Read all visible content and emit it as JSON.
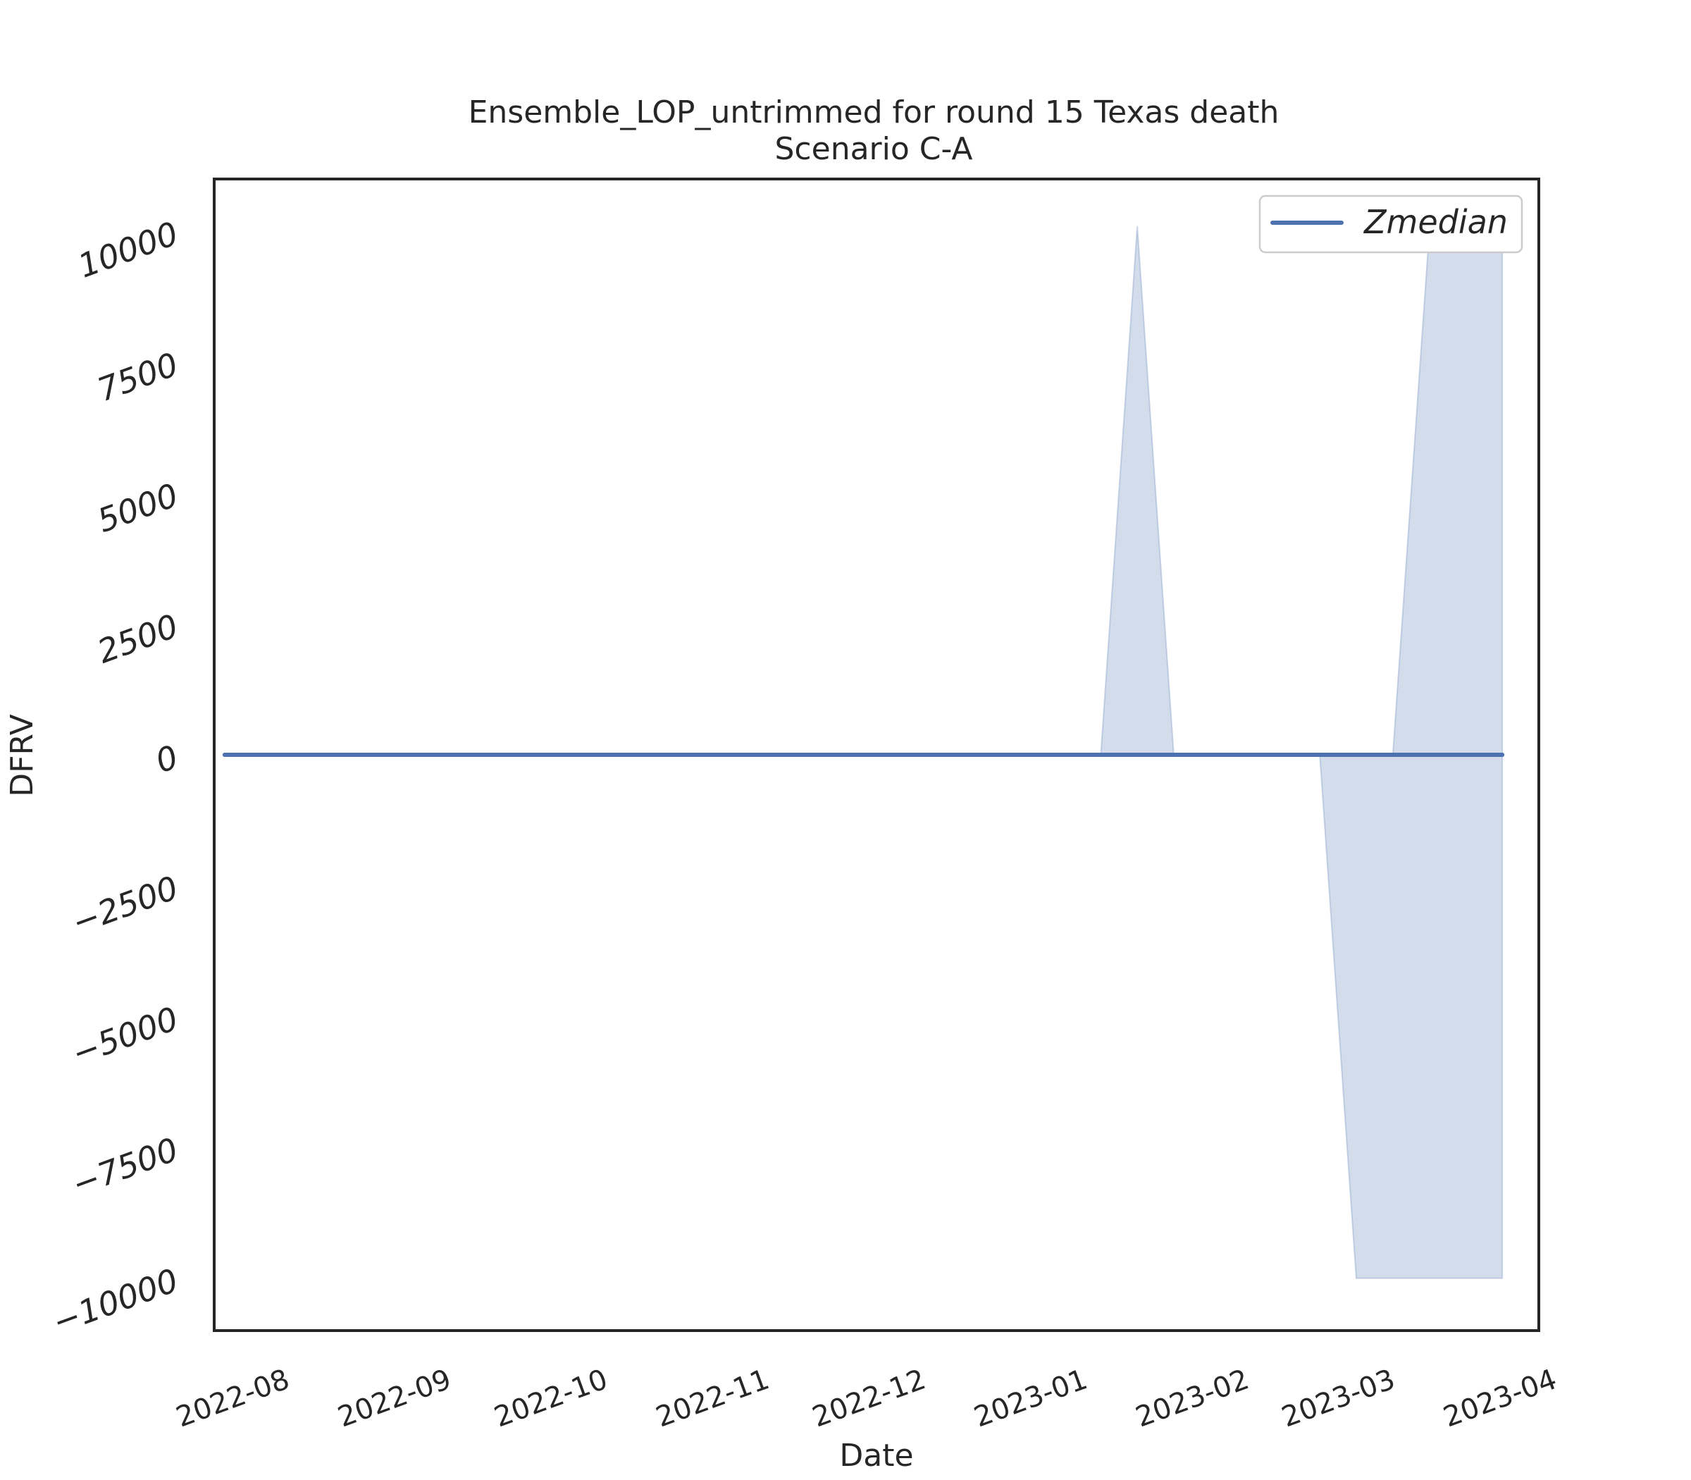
{
  "chart_data": {
    "type": "line",
    "title": "Ensemble_LOP_untrimmed for round 15 Texas death",
    "subtitle": "Scenario C-A",
    "xlabel": "Date",
    "ylabel": "DFRV",
    "x_ticks": [
      "2022-08",
      "2022-09",
      "2022-10",
      "2022-11",
      "2022-12",
      "2023-01",
      "2023-02",
      "2023-03",
      "2023-04"
    ],
    "y_ticks": [
      "10000",
      "7500",
      "5000",
      "2500",
      "0",
      "−2500",
      "−5000",
      "−7500",
      "−10000"
    ],
    "y_tick_values": [
      10000,
      7500,
      5000,
      2500,
      0,
      -2500,
      -5000,
      -7500,
      -10000
    ],
    "xlim": [
      "2022-07-21",
      "2023-04-01"
    ],
    "ylim": [
      -11000,
      11000
    ],
    "grid": false,
    "legend_position": "top-right",
    "series": [
      {
        "name": "Zmedian",
        "color": "#4c72b0",
        "x": [
          "2022-07-23",
          "2022-08-27",
          "2022-10-01",
          "2022-11-05",
          "2022-12-10",
          "2023-01-14",
          "2023-02-18",
          "2023-03-25"
        ],
        "y": [
          0,
          0,
          0,
          0,
          0,
          0,
          0,
          0
        ]
      }
    ],
    "band": {
      "color": "#4c72b0",
      "opacity": 0.25,
      "x": [
        "2022-07-23",
        "2023-01-07",
        "2023-01-14",
        "2023-01-21",
        "2023-02-18",
        "2023-02-25",
        "2023-03-04",
        "2023-03-11",
        "2023-03-25"
      ],
      "upper": [
        0,
        0,
        10100,
        0,
        0,
        0,
        0,
        10000,
        10000
      ],
      "lower": [
        0,
        0,
        0,
        0,
        0,
        -10000,
        -10000,
        -10000,
        -10000
      ]
    }
  }
}
